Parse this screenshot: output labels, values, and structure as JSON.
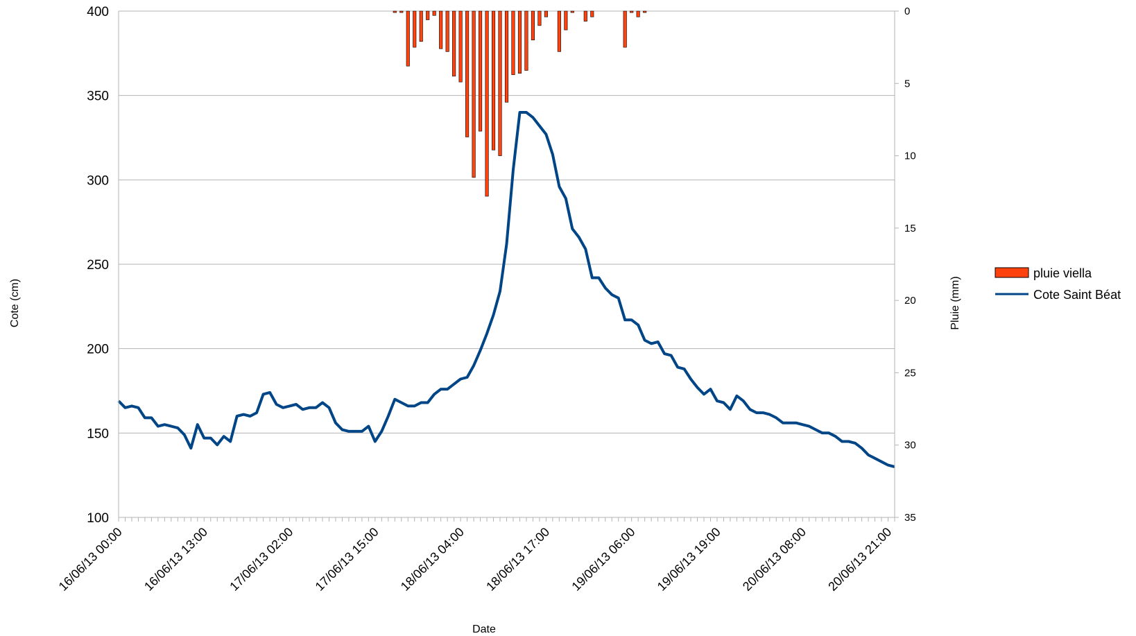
{
  "chart_data": {
    "type": "bar+line",
    "title": "",
    "xlabel": "Date",
    "ylabel_left": "Cote (cm)",
    "ylabel_right": "Pluie (mm)",
    "ylim_left": [
      100,
      400
    ],
    "ylim_right": [
      35,
      0
    ],
    "right_axis_inverted": true,
    "left_ticks": [
      "100",
      "150",
      "200",
      "250",
      "300",
      "350",
      "400"
    ],
    "right_ticks": [
      "0",
      "5",
      "10",
      "15",
      "20",
      "25",
      "30",
      "35"
    ],
    "x_points": 119,
    "x_tick_step": 13,
    "x_tick_labels": [
      "16/06/13 00:00",
      "16/06/13 13:00",
      "17/06/13 02:00",
      "17/06/13 15:00",
      "18/06/13 04:00",
      "18/06/13 17:00",
      "19/06/13 06:00",
      "19/06/13 19:00",
      "20/06/13 08:00",
      "20/06/13 21:00"
    ],
    "grid": true,
    "legend_position": "right",
    "series": [
      {
        "name": "pluie viella",
        "type": "bar",
        "axis": "right",
        "color": "#ff420e",
        "values": [
          0,
          0,
          0,
          0,
          0,
          0,
          0,
          0,
          0,
          0,
          0,
          0,
          0,
          0,
          0,
          0,
          0,
          0,
          0,
          0,
          0,
          0,
          0,
          0,
          0,
          0,
          0,
          0,
          0,
          0,
          0,
          0,
          0,
          0,
          0,
          0,
          0,
          0,
          0,
          0,
          0,
          0,
          0.1,
          0.1,
          3.8,
          2.5,
          2.1,
          0.6,
          0.3,
          2.6,
          2.8,
          4.5,
          4.9,
          8.7,
          11.5,
          8.3,
          12.8,
          9.6,
          10.0,
          6.3,
          4.4,
          4.3,
          4.1,
          2.0,
          1.0,
          0.4,
          0,
          2.8,
          1.3,
          0.1,
          0,
          0.7,
          0.4,
          0,
          0,
          0,
          0,
          2.5,
          0.1,
          0.4,
          0.1,
          0,
          0,
          0,
          0,
          0,
          0,
          0,
          0,
          0,
          0,
          0,
          0,
          0,
          0,
          0,
          0,
          0,
          0,
          0,
          0,
          0,
          0,
          0,
          0,
          0,
          0,
          0,
          0,
          0,
          0,
          0,
          0,
          0,
          0,
          0,
          0,
          0,
          0
        ]
      },
      {
        "name": "Cote Saint Béat",
        "type": "line",
        "axis": "left",
        "color": "#004586",
        "values": [
          169,
          165,
          166,
          165,
          159,
          159,
          154,
          155,
          154,
          153,
          149,
          141,
          155,
          147,
          147,
          143,
          148,
          145,
          160,
          161,
          160,
          162,
          173,
          174,
          167,
          165,
          166,
          167,
          164,
          165,
          165,
          168,
          165,
          156,
          152,
          151,
          151,
          151,
          154,
          145,
          151,
          160,
          170,
          168,
          166,
          166,
          168,
          168,
          173,
          176,
          176,
          179,
          182,
          183,
          190,
          199,
          209,
          220,
          234,
          262,
          306,
          340,
          340,
          337,
          332,
          327,
          315,
          296,
          289,
          271,
          266,
          259,
          242,
          242,
          236,
          232,
          230,
          217,
          217,
          214,
          205,
          203,
          204,
          197,
          196,
          189,
          188,
          182,
          177,
          173,
          176,
          169,
          168,
          164,
          172,
          169,
          164,
          162,
          162,
          161,
          159,
          156,
          156,
          156,
          155,
          154,
          152,
          150,
          150,
          148,
          145,
          145,
          144,
          141,
          137,
          135,
          133,
          131,
          130
        ]
      }
    ]
  }
}
